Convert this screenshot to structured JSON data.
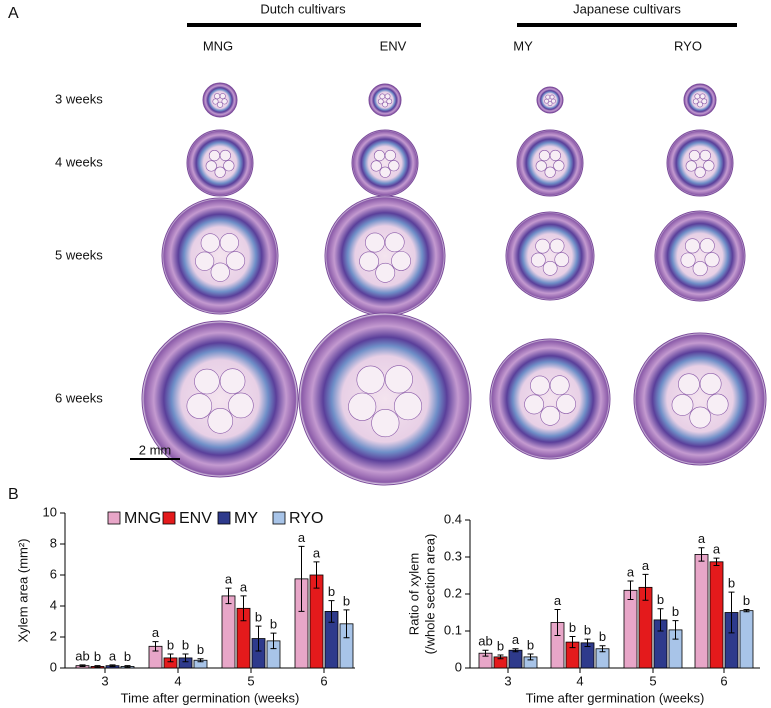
{
  "panel_a": {
    "panel_label": "A",
    "groups": [
      "Dutch cultivars",
      "Japanese cultivars"
    ],
    "columns": [
      "MNG",
      "ENV",
      "MY",
      "RYO"
    ],
    "rows": [
      "3 weeks",
      "4 weeks",
      "5 weeks",
      "6 weeks"
    ],
    "scale_bar": "2 mm"
  },
  "panel_b": {
    "panel_label": "B"
  },
  "chart_data": [
    {
      "type": "bar",
      "y_label": [
        "Xylem area (mm²)"
      ],
      "x_label": "Time after germination (weeks)",
      "categories": [
        "3",
        "4",
        "5",
        "6"
      ],
      "ylim": [
        0,
        10
      ],
      "yticks": [
        0,
        2,
        4,
        6,
        8,
        10
      ],
      "legend": true,
      "series": [
        {
          "name": "MNG",
          "color": "#e8a6c8",
          "values": [
            0.15,
            1.4,
            4.65,
            5.75
          ],
          "errors": [
            0.05,
            0.3,
            0.5,
            2.1
          ],
          "letters": [
            "ab",
            "a",
            "a",
            "a"
          ]
        },
        {
          "name": "ENV",
          "color": "#e41a1c",
          "values": [
            0.1,
            0.65,
            3.85,
            6.0
          ],
          "errors": [
            0.05,
            0.25,
            0.8,
            0.85
          ],
          "letters": [
            "b",
            "b",
            "a",
            "a"
          ]
        },
        {
          "name": "MY",
          "color": "#2e3a8c",
          "values": [
            0.15,
            0.65,
            1.9,
            3.65
          ],
          "errors": [
            0.05,
            0.25,
            0.8,
            0.7
          ],
          "letters": [
            "a",
            "b",
            "b",
            "b"
          ]
        },
        {
          "name": "RYO",
          "color": "#a8c4e8",
          "values": [
            0.1,
            0.5,
            1.75,
            2.85
          ],
          "errors": [
            0.05,
            0.1,
            0.5,
            0.9
          ],
          "letters": [
            "b",
            "b",
            "b",
            "b"
          ]
        }
      ]
    },
    {
      "type": "bar",
      "y_label": [
        "Ratio of xylem",
        "(/whole section area)"
      ],
      "x_label": "Time after germination (weeks)",
      "categories": [
        "3",
        "4",
        "5",
        "6"
      ],
      "ylim": [
        0,
        0.4
      ],
      "yticks": [
        0,
        0.1,
        0.2,
        0.3,
        0.4
      ],
      "legend": false,
      "series": [
        {
          "color": "#e8a6c8",
          "values": [
            0.04,
            0.123,
            0.21,
            0.307
          ],
          "errors": [
            0.008,
            0.035,
            0.025,
            0.018
          ],
          "letters": [
            "ab",
            "a",
            "a",
            "a"
          ]
        },
        {
          "color": "#e41a1c",
          "values": [
            0.03,
            0.07,
            0.218,
            0.287
          ],
          "errors": [
            0.005,
            0.015,
            0.035,
            0.01
          ],
          "letters": [
            "b",
            "b",
            "a",
            "a"
          ]
        },
        {
          "color": "#2e3a8c",
          "values": [
            0.048,
            0.068,
            0.13,
            0.15
          ],
          "errors": [
            0.004,
            0.01,
            0.03,
            0.055
          ],
          "letters": [
            "a",
            "b",
            "b",
            "b"
          ]
        },
        {
          "color": "#a8c4e8",
          "values": [
            0.03,
            0.052,
            0.103,
            0.155
          ],
          "errors": [
            0.008,
            0.008,
            0.025,
            0.003
          ],
          "letters": [
            "b",
            "b",
            "b",
            "b"
          ]
        }
      ]
    }
  ]
}
